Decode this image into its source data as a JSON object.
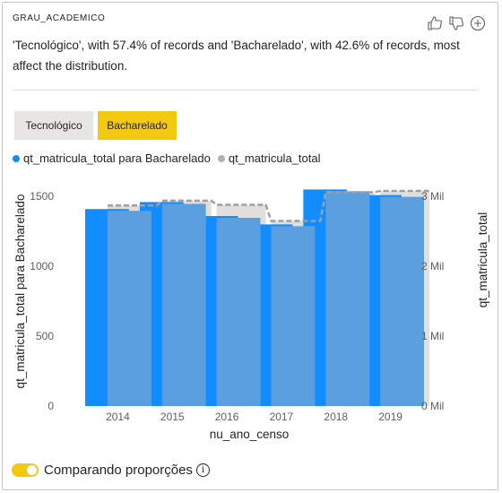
{
  "header": {
    "title": "GRAU_ACADEMICO",
    "actions": [
      {
        "icon": "thumbs-up-icon"
      },
      {
        "icon": "thumbs-down-icon"
      },
      {
        "icon": "add-icon"
      }
    ]
  },
  "description": "'Tecnológico', with 57.4% of records and 'Bacharelado', with 42.6% of records, most affect the distribution.",
  "segments": [
    {
      "label": "Tecnológico",
      "selected": false
    },
    {
      "label": "Bacharelado",
      "selected": true
    }
  ],
  "legend": [
    {
      "label": "qt_matricula_total para Bacharelado",
      "color": "#118dff"
    },
    {
      "label": "qt_matricula_total",
      "color": "#b3b0ad"
    }
  ],
  "colors": {
    "series_primary": "#118dff",
    "series_overlay": "#5b9fde",
    "series_total": "#e1dfdd",
    "accent": "#f2c811"
  },
  "chart_data": {
    "type": "bar",
    "categories": [
      "2014",
      "2015",
      "2016",
      "2017",
      "2018",
      "2019"
    ],
    "series": [
      {
        "name": "qt_matricula_total para Bacharelado",
        "axis": "left",
        "values": [
          1410,
          1460,
          1360,
          1300,
          1550,
          1510
        ]
      },
      {
        "name": "qt_matricula_total",
        "axis": "right",
        "values": [
          2870,
          2940,
          2880,
          2650,
          3060,
          3080
        ]
      }
    ],
    "xlabel": "nu_ano_censo",
    "ylabel_left": "qt_matricula_total para Bacharelado",
    "ylabel_right": "qt_matricula_total",
    "ylim_left": [
      0,
      1700
    ],
    "ylim_right": [
      0,
      3400
    ],
    "yticks_left": [
      "0",
      "500",
      "1000",
      "1500"
    ],
    "yticks_right": [
      "0 Mil",
      "1 Mil",
      "2 Mil",
      "3 Mil"
    ],
    "grid": false
  },
  "footer": {
    "toggle_label": "Comparando proporções",
    "toggle_on": true,
    "info_glyph": "i"
  }
}
